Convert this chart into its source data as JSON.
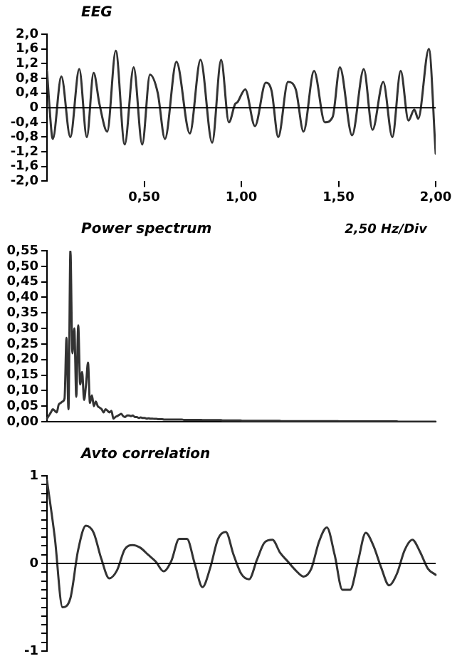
{
  "chart_data": [
    {
      "type": "line",
      "title": "EEG",
      "color": "#333333",
      "marker": "none",
      "legend": false,
      "x": [
        0,
        0.025,
        0.03,
        0.074,
        0.12,
        0.166,
        0.205,
        0.24,
        0.27,
        0.31,
        0.354,
        0.4,
        0.446,
        0.49,
        0.53,
        0.57,
        0.607,
        0.666,
        0.735,
        0.79,
        0.85,
        0.896,
        0.936,
        0.968,
        0.98,
        1.02,
        1.07,
        1.126,
        1.156,
        1.19,
        1.24,
        1.28,
        1.32,
        1.374,
        1.43,
        1.47,
        1.507,
        1.57,
        1.63,
        1.675,
        1.73,
        1.777,
        1.82,
        1.86,
        1.89,
        1.91,
        1.965,
        2.0
      ],
      "values": [
        1.0,
        -0.75,
        -0.85,
        0.85,
        -0.8,
        1.05,
        -0.8,
        0.95,
        0.1,
        -0.65,
        1.55,
        -1.0,
        1.1,
        -1.0,
        0.9,
        0.4,
        -0.85,
        1.25,
        -0.7,
        1.3,
        -0.95,
        1.3,
        -0.4,
        0.1,
        0.15,
        0.5,
        -0.5,
        0.68,
        0.45,
        -0.8,
        0.7,
        0.5,
        -0.65,
        1.0,
        -0.4,
        -0.25,
        1.1,
        -0.75,
        1.05,
        -0.6,
        0.7,
        -0.8,
        1.0,
        -0.35,
        -0.05,
        -0.3,
        1.6,
        -1.25
      ],
      "xlim": [
        0,
        2
      ],
      "xticks": [
        {
          "value": 0.5,
          "label": "0,50"
        },
        {
          "value": 1,
          "label": "1,00"
        },
        {
          "value": 1.5,
          "label": "1,50"
        },
        {
          "value": 2,
          "label": "2,00"
        }
      ],
      "ylim": [
        -2,
        2
      ],
      "yticks": [
        {
          "value": 2,
          "label": "2,0"
        },
        {
          "value": 1.6,
          "label": "1,6"
        },
        {
          "value": 1.2,
          "label": "1,2"
        },
        {
          "value": 0.8,
          "label": "0,8"
        },
        {
          "value": 0.4,
          "label": "0,4"
        },
        0,
        {
          "value": -0.4,
          "label": "-0,4"
        },
        {
          "value": -0.8,
          "label": "-0,8"
        },
        {
          "value": -1.2,
          "label": "-1,2"
        },
        {
          "value": -1.6,
          "label": "-1,6"
        },
        {
          "value": -2,
          "label": "-2,0"
        }
      ],
      "ref_lines": [
        {
          "axis": "y",
          "value": 0,
          "color": "#000000"
        }
      ]
    },
    {
      "type": "line",
      "title": "Power spectrum",
      "annotations": [
        "2,50 Hz/Div"
      ],
      "color": "#333333",
      "marker": "none",
      "legend": false,
      "tick_labels": "y",
      "categories": [
        null,
        null,
        null,
        null,
        null,
        null,
        null,
        null,
        null,
        null,
        null,
        null,
        null,
        null,
        null,
        null,
        null,
        null,
        null,
        null,
        null,
        null,
        null,
        null,
        null,
        null,
        null,
        null,
        null,
        null,
        null,
        null,
        null,
        null,
        null,
        null,
        null,
        null,
        null,
        null,
        null,
        null,
        null,
        null,
        null,
        null,
        null,
        null,
        null,
        null,
        null,
        null,
        null,
        null,
        null,
        null,
        null,
        null,
        null,
        null,
        null,
        null,
        null,
        null,
        null,
        null,
        null,
        null,
        null,
        null,
        null,
        null,
        null,
        null,
        null,
        null,
        null,
        null,
        null,
        null,
        null,
        null,
        null,
        null,
        null,
        null,
        null,
        null,
        null,
        null,
        null,
        null,
        null,
        null,
        null,
        null,
        null,
        null,
        null,
        null,
        null,
        null,
        null,
        null,
        null,
        null,
        null,
        null,
        null,
        null,
        null,
        null,
        null,
        null,
        null,
        null,
        null,
        null,
        null,
        null,
        null,
        null,
        null,
        null,
        null,
        null,
        null,
        null,
        null,
        null,
        null,
        null,
        null,
        null,
        null,
        null,
        null,
        null,
        null,
        null,
        null,
        null,
        null,
        null,
        null,
        null,
        null,
        null,
        null,
        null,
        null,
        null,
        null,
        null,
        null,
        null,
        null,
        null,
        null,
        null,
        null,
        null,
        null,
        null,
        null,
        null,
        null,
        null,
        null,
        null,
        null,
        null,
        null,
        null,
        null,
        null,
        null,
        null,
        null,
        null,
        null,
        null,
        null,
        null,
        null,
        null,
        null,
        null,
        null,
        null,
        null,
        null,
        null,
        null,
        null,
        null,
        null,
        null,
        null,
        null
      ],
      "values": [
        0.01,
        0.02,
        0.03,
        0.04,
        0.035,
        0.03,
        0.055,
        0.06,
        0.065,
        0.075,
        0.27,
        0.04,
        0.55,
        0.22,
        0.3,
        0.08,
        0.31,
        0.12,
        0.16,
        0.07,
        0.12,
        0.19,
        0.06,
        0.085,
        0.05,
        0.065,
        0.05,
        0.045,
        0.04,
        0.03,
        0.04,
        0.035,
        0.03,
        0.035,
        0.01,
        0.015,
        0.018,
        0.022,
        0.025,
        0.018,
        0.015,
        0.02,
        0.02,
        0.018,
        0.02,
        0.015,
        0.015,
        0.012,
        0.014,
        0.012,
        0.012,
        0.01,
        0.011,
        0.01,
        0.01,
        0.009,
        0.009,
        0.008,
        0.008,
        0.008,
        0.007,
        0.007,
        0.007,
        0.007,
        0.007,
        0.007,
        0.007,
        0.007,
        0.007,
        0.007,
        0.006,
        0.006,
        0.006,
        0.006,
        0.006,
        0.006,
        0.006,
        0.006,
        0.006,
        0.006,
        0.005,
        0.005,
        0.005,
        0.005,
        0.005,
        0.005,
        0.005,
        0.005,
        0.005,
        0.005,
        0.004,
        0.004,
        0.004,
        0.004,
        0.004,
        0.004,
        0.004,
        0.004,
        0.004,
        0.004,
        0.003,
        0.003,
        0.003,
        0.003,
        0.003,
        0.003,
        0.003,
        0.003,
        0.003,
        0.003,
        0.003,
        0.003,
        0.003,
        0.003,
        0.003,
        0.003,
        0.003,
        0.003,
        0.003,
        0.003,
        0.002,
        0.002,
        0.002,
        0.002,
        0.002,
        0.002,
        0.002,
        0.002,
        0.002,
        0.002,
        0.002,
        0.002,
        0.002,
        0.002,
        0.002,
        0.002,
        0.002,
        0.002,
        0.002,
        0.002,
        0.002,
        0.002,
        0.002,
        0.002,
        0.002,
        0.002,
        0.002,
        0.002,
        0.002,
        0.002,
        0.001,
        0.001,
        0.001,
        0.001,
        0.001,
        0.001,
        0.001,
        0.001,
        0.001,
        0.001,
        0.001,
        0.001,
        0.001,
        0.001,
        0.001,
        0.001,
        0.001,
        0.001,
        0.001,
        0.001,
        0.001,
        0.001,
        0.001,
        0.001,
        0.001,
        0.001,
        0.001,
        0.001,
        0.001,
        0.001,
        0,
        0,
        0,
        0,
        0,
        0,
        0,
        0,
        0,
        0,
        0,
        0,
        0,
        0,
        0,
        0,
        0,
        0,
        0,
        0
      ],
      "ylim": [
        0,
        0.55
      ],
      "yticks": [
        {
          "value": 0.55,
          "label": "0,55"
        },
        {
          "value": 0.5,
          "label": "0,50"
        },
        {
          "value": 0.45,
          "label": "0,45"
        },
        {
          "value": 0.4,
          "label": "0,40"
        },
        {
          "value": 0.35,
          "label": "0,35"
        },
        {
          "value": 0.3,
          "label": "0,30"
        },
        {
          "value": 0.25,
          "label": "0,25"
        },
        {
          "value": 0.2,
          "label": "0,20"
        },
        {
          "value": 0.15,
          "label": "0,15"
        },
        {
          "value": 0.1,
          "label": "0,10"
        },
        {
          "value": 0.05,
          "label": "0,05"
        },
        {
          "value": 0,
          "label": "0,00"
        }
      ]
    },
    {
      "type": "line",
      "title": "Avto correlation",
      "color": "#333333",
      "marker": "none",
      "legend": false,
      "tick_labels": "y",
      "categories": [
        null,
        null,
        null,
        null,
        null,
        null,
        null,
        null,
        null,
        null,
        null,
        null,
        null,
        null,
        null,
        null,
        null,
        null,
        null,
        null,
        null,
        null,
        null,
        null,
        null,
        null,
        null,
        null,
        null,
        null,
        null,
        null,
        null,
        null,
        null,
        null,
        null,
        null,
        null,
        null,
        null,
        null,
        null,
        null,
        null,
        null,
        null,
        null,
        null,
        null,
        null
      ],
      "values": [
        0.95,
        0.3,
        -0.5,
        -0.4,
        0.15,
        0.43,
        0.35,
        0.05,
        -0.17,
        -0.08,
        0.16,
        0.21,
        0.18,
        0.1,
        0.02,
        -0.09,
        0.03,
        0.28,
        0.28,
        0,
        -0.27,
        -0.05,
        0.28,
        0.36,
        0.1,
        -0.12,
        -0.18,
        0.04,
        0.24,
        0.27,
        0.12,
        0.02,
        -0.08,
        -0.15,
        -0.06,
        0.25,
        0.41,
        0.1,
        -0.3,
        -0.3,
        0.02,
        0.35,
        0.2,
        -0.05,
        -0.25,
        -0.12,
        0.15,
        0.27,
        0.13,
        -0.06,
        -0.13
      ],
      "ylim": [
        -1,
        1
      ],
      "yticks": [
        1,
        {
          "value": 0.9,
          "label": null
        },
        {
          "value": 0.8,
          "label": null
        },
        {
          "value": 0.7,
          "label": null
        },
        {
          "value": 0.6,
          "label": null
        },
        {
          "value": 0.5,
          "label": null
        },
        {
          "value": 0.4,
          "label": null
        },
        {
          "value": 0.3,
          "label": null
        },
        {
          "value": 0.2,
          "label": null
        },
        {
          "value": 0.1,
          "label": null
        },
        0,
        {
          "value": -0.1,
          "label": null
        },
        {
          "value": -0.2,
          "label": null
        },
        {
          "value": -0.3,
          "label": null
        },
        {
          "value": -0.4,
          "label": null
        },
        {
          "value": -0.5,
          "label": null
        },
        {
          "value": -0.6,
          "label": null
        },
        {
          "value": -0.7,
          "label": null
        },
        {
          "value": -0.8,
          "label": null
        },
        {
          "value": -0.9,
          "label": null
        },
        -1
      ],
      "ref_lines": [
        {
          "axis": "y",
          "value": 0,
          "color": "#000000"
        }
      ]
    }
  ]
}
